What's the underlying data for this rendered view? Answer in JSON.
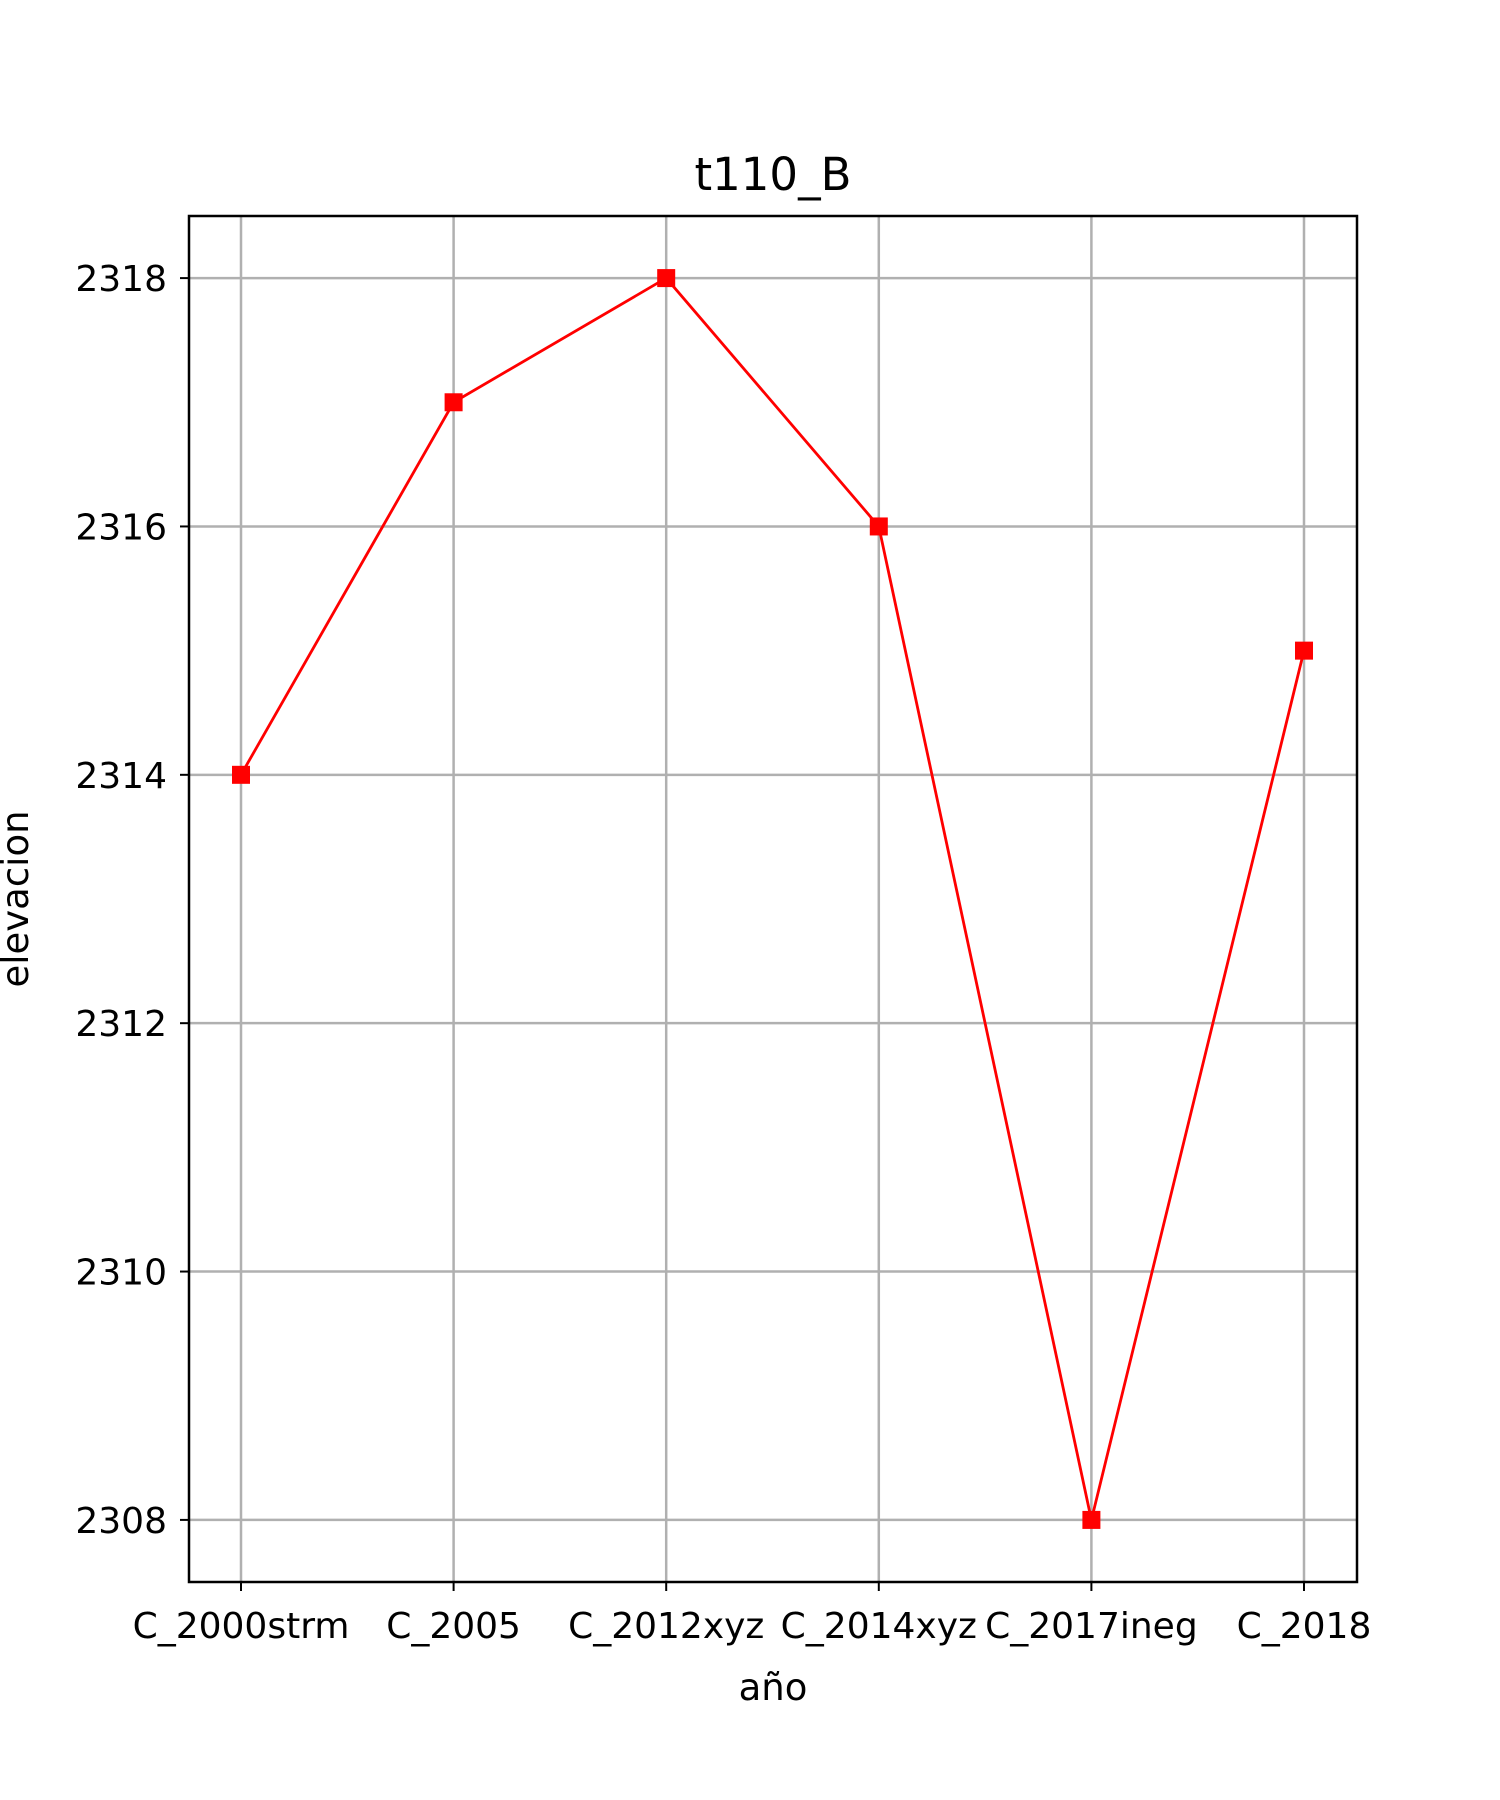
{
  "chart_data": {
    "type": "line",
    "title": "t110_B",
    "xlabel": "año",
    "ylabel": "elevacion",
    "categories": [
      "C_2000strm",
      "C_2005",
      "C_2012xyz",
      "C_2014xyz",
      "C_2017ineg",
      "C_2018"
    ],
    "series": [
      {
        "values": [
          2314,
          2317,
          2318,
          2316,
          2308,
          2315
        ],
        "color": "#ff0000",
        "marker": "square"
      }
    ],
    "ylim": [
      2307.5,
      2318.5
    ],
    "yticks": [
      2308,
      2310,
      2312,
      2314,
      2316,
      2318
    ],
    "grid": true
  }
}
